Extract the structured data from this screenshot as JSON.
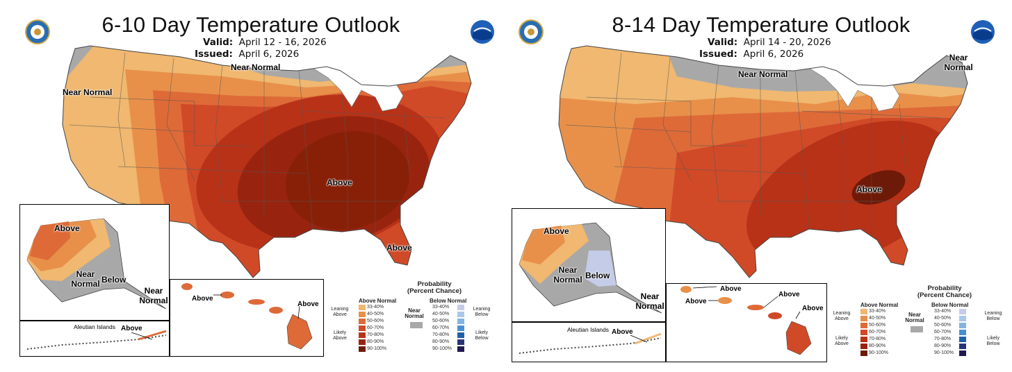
{
  "colors": {
    "c33": "#F0B870",
    "c40": "#E8904A",
    "c50": "#DE6A38",
    "c60": "#D04A28",
    "c70": "#B83218",
    "c80": "#982410",
    "c90": "#6E1A08",
    "b33": "#C4CCE8",
    "b40": "#A8C8E8",
    "b50": "#84B4E0",
    "b60": "#4A90D0",
    "b70": "#2060A8",
    "b80": "#283478",
    "b90": "#201A50",
    "near": "#A8A8A8"
  },
  "panels": [
    {
      "title": "6-10 Day Temperature Outlook",
      "valid_label": "Valid:",
      "valid_value": "April 12 - 16, 2026",
      "issued_label": "Issued:",
      "issued_value": "April 6, 2026",
      "labels": {
        "near_normal_nw": "Near Normal",
        "near_normal_n": "Near Normal",
        "above_main": "Above",
        "above_fl": "Above",
        "ak_above": "Above",
        "ak_near": "Near Normal",
        "ak_below": "Below",
        "ak_near_se": "Near Normal",
        "hi_above": "Above",
        "hi_above2": "Above",
        "aleutian_title": "Aleutian Islands",
        "aleutian_above": "Above"
      }
    },
    {
      "title": "8-14 Day Temperature Outlook",
      "valid_label": "Valid:",
      "valid_value": "April 14 - 20, 2026",
      "issued_label": "Issued:",
      "issued_value": "April 6, 2026",
      "labels": {
        "near_normal_n": "Near Normal",
        "near_normal_ne": "Near Normal",
        "above_main": "Above",
        "ak_above": "Above",
        "ak_near": "Near Normal",
        "ak_below": "Below",
        "ak_near_se": "Near Normal",
        "hi_above1": "Above",
        "hi_above2": "Above",
        "hi_above3": "Above",
        "hi_above4": "Above",
        "aleutian_title": "Aleutian Islands",
        "aleutian_above": "Above"
      }
    }
  ],
  "legend": {
    "title": "Probability",
    "subtitle": "(Percent Chance)",
    "above_head": "Above Normal",
    "below_head": "Below Normal",
    "near_label": "Near Normal",
    "leaning_above": "Leaning Above",
    "likely_above": "Likely Above",
    "leaning_below": "Leaning Below",
    "likely_below": "Likely Below",
    "ranges": [
      "33-40%",
      "40-50%",
      "50-60%",
      "60-70%",
      "70-80%",
      "80-90%",
      "90-100%"
    ]
  }
}
